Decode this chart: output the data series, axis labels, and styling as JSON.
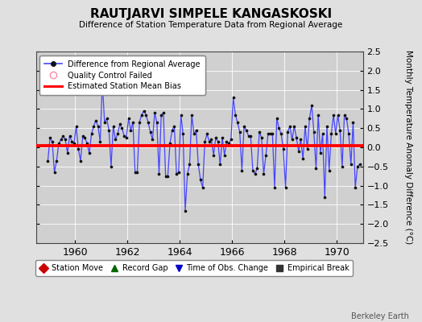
{
  "title": "RAUTJARVI SIMPELE KANGASKOSKI",
  "subtitle": "Difference of Station Temperature Data from Regional Average",
  "ylabel": "Monthly Temperature Anomaly Difference (°C)",
  "xlabel_years": [
    1960,
    1962,
    1964,
    1966,
    1968,
    1970
  ],
  "xlim": [
    1958.5,
    1971.0
  ],
  "ylim": [
    -2.5,
    2.5
  ],
  "yticks": [
    -2.5,
    -2,
    -1.5,
    -1,
    -0.5,
    0,
    0.5,
    1,
    1.5,
    2,
    2.5
  ],
  "bias_value": 0.05,
  "background_color": "#e0e0e0",
  "plot_bg_color": "#d0d0d0",
  "line_color": "#4444ff",
  "dot_color": "#111111",
  "bias_color": "#ff0000",
  "watermark": "Berkeley Earth",
  "data_x": [
    1958.958,
    1959.042,
    1959.125,
    1959.208,
    1959.292,
    1959.375,
    1959.458,
    1959.542,
    1959.625,
    1959.708,
    1959.792,
    1959.875,
    1959.958,
    1960.042,
    1960.125,
    1960.208,
    1960.292,
    1960.375,
    1960.458,
    1960.542,
    1960.625,
    1960.708,
    1960.792,
    1960.875,
    1960.958,
    1961.042,
    1961.125,
    1961.208,
    1961.292,
    1961.375,
    1961.458,
    1961.542,
    1961.625,
    1961.708,
    1961.792,
    1961.875,
    1961.958,
    1962.042,
    1962.125,
    1962.208,
    1962.292,
    1962.375,
    1962.458,
    1962.542,
    1962.625,
    1962.708,
    1962.792,
    1962.875,
    1962.958,
    1963.042,
    1963.125,
    1963.208,
    1963.292,
    1963.375,
    1963.458,
    1963.542,
    1963.625,
    1963.708,
    1963.792,
    1963.875,
    1963.958,
    1964.042,
    1964.125,
    1964.208,
    1964.292,
    1964.375,
    1964.458,
    1964.542,
    1964.625,
    1964.708,
    1964.792,
    1964.875,
    1964.958,
    1965.042,
    1965.125,
    1965.208,
    1965.292,
    1965.375,
    1965.458,
    1965.542,
    1965.625,
    1965.708,
    1965.792,
    1965.875,
    1965.958,
    1966.042,
    1966.125,
    1966.208,
    1966.292,
    1966.375,
    1966.458,
    1966.542,
    1966.625,
    1966.708,
    1966.792,
    1966.875,
    1966.958,
    1967.042,
    1967.125,
    1967.208,
    1967.292,
    1967.375,
    1967.458,
    1967.542,
    1967.625,
    1967.708,
    1967.792,
    1967.875,
    1967.958,
    1968.042,
    1968.125,
    1968.208,
    1968.292,
    1968.375,
    1968.458,
    1968.542,
    1968.625,
    1968.708,
    1968.792,
    1968.875,
    1968.958,
    1969.042,
    1969.125,
    1969.208,
    1969.292,
    1969.375,
    1969.458,
    1969.542,
    1969.625,
    1969.708,
    1969.792,
    1969.875,
    1969.958,
    1970.042,
    1970.125,
    1970.208,
    1970.292,
    1970.375,
    1970.458,
    1970.542,
    1970.625,
    1970.708,
    1970.792,
    1970.875
  ],
  "data_y": [
    -0.35,
    0.25,
    0.15,
    -0.65,
    -0.35,
    0.1,
    0.2,
    0.3,
    0.2,
    -0.15,
    0.3,
    0.15,
    0.1,
    0.55,
    -0.05,
    -0.35,
    0.3,
    0.25,
    0.1,
    -0.15,
    0.35,
    0.55,
    0.7,
    0.55,
    0.15,
    1.7,
    0.65,
    0.75,
    0.45,
    -0.5,
    0.55,
    0.2,
    0.35,
    0.6,
    0.5,
    0.3,
    0.25,
    0.75,
    0.45,
    0.65,
    -0.65,
    -0.65,
    0.65,
    0.85,
    0.95,
    0.85,
    0.65,
    0.4,
    0.2,
    0.9,
    0.65,
    -0.7,
    0.85,
    0.9,
    -0.75,
    -0.75,
    0.1,
    0.45,
    0.55,
    -0.7,
    -0.65,
    0.85,
    0.35,
    -1.65,
    -0.7,
    -0.45,
    0.85,
    0.35,
    0.45,
    -0.45,
    -0.85,
    -1.05,
    0.15,
    0.35,
    0.15,
    0.2,
    -0.2,
    0.25,
    0.15,
    -0.45,
    0.25,
    -0.2,
    0.15,
    0.1,
    0.2,
    1.3,
    0.85,
    0.65,
    0.4,
    -0.6,
    0.55,
    0.45,
    0.3,
    0.3,
    -0.6,
    -0.7,
    -0.55,
    0.4,
    0.25,
    -0.7,
    -0.2,
    0.35,
    0.35,
    0.35,
    -1.05,
    0.75,
    0.5,
    0.35,
    -0.05,
    -1.05,
    0.4,
    0.55,
    0.2,
    0.55,
    0.25,
    -0.1,
    0.2,
    -0.3,
    0.55,
    -0.05,
    0.75,
    1.1,
    0.4,
    -0.55,
    0.85,
    -0.15,
    0.35,
    -1.3,
    0.55,
    -0.6,
    0.35,
    0.85,
    0.35,
    0.85,
    0.45,
    -0.5,
    0.85,
    0.75,
    0.35,
    -0.45,
    0.65,
    -1.05,
    -0.5,
    -0.45
  ],
  "legend1_entries": [
    {
      "label": "Difference from Regional Average",
      "color": "#4444ff",
      "marker": "o",
      "linestyle": "-"
    },
    {
      "label": "Quality Control Failed",
      "color": "#ff99cc",
      "marker": "o",
      "linestyle": "none"
    },
    {
      "label": "Estimated Station Mean Bias",
      "color": "#ff0000",
      "marker": null,
      "linestyle": "-"
    }
  ],
  "legend2_entries": [
    {
      "label": "Station Move",
      "color": "#cc0000",
      "marker": "D"
    },
    {
      "label": "Record Gap",
      "color": "#006600",
      "marker": "^"
    },
    {
      "label": "Time of Obs. Change",
      "color": "#0000cc",
      "marker": "v"
    },
    {
      "label": "Empirical Break",
      "color": "#333333",
      "marker": "s"
    }
  ]
}
